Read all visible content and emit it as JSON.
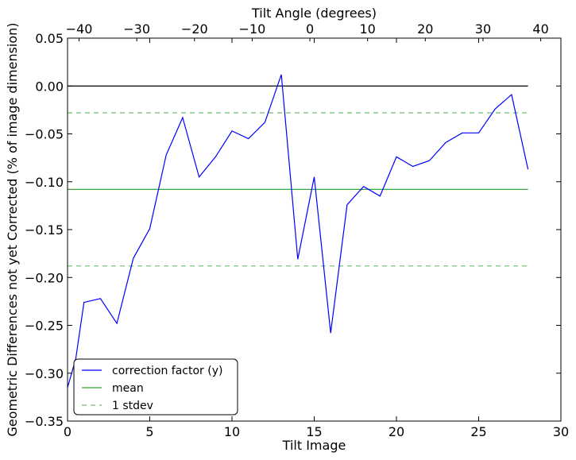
{
  "chart_data": {
    "type": "line",
    "title": "",
    "xlabel": "Tilt Image",
    "ylabel": "Geometric Differences not yet Corrected (% of image dimension)",
    "top_xlabel": "Tilt Angle (degrees)",
    "xlim": [
      0,
      30
    ],
    "ylim": [
      -0.35,
      0.05
    ],
    "top_xlim": [
      -42.0,
      43.5
    ],
    "x_ticks": [
      "0",
      "5",
      "10",
      "15",
      "20",
      "25",
      "30"
    ],
    "y_ticks": [
      "0.05",
      "0.00",
      "−0.05",
      "−0.10",
      "−0.15",
      "−0.20",
      "−0.25",
      "−0.30",
      "−0.35"
    ],
    "top_ticks": [
      "−40",
      "−30",
      "−20",
      "−10",
      "0",
      "10",
      "20",
      "30",
      "40"
    ],
    "grid": false,
    "legend_position": "lower-left",
    "colors": {
      "correction": "#0000ff",
      "mean": "#3aa53a",
      "stdev": "#6fbf6f",
      "zero": "#000000"
    },
    "series": [
      {
        "name": "correction factor (y)",
        "style": "solid",
        "x": [
          0,
          0.5,
          1,
          2,
          3,
          4,
          5,
          6,
          7,
          8,
          9,
          10,
          11,
          12,
          13,
          14,
          15,
          16,
          17,
          18,
          19,
          20,
          21,
          22,
          23,
          24,
          25,
          26,
          27,
          28
        ],
        "y": [
          -0.315,
          -0.285,
          -0.226,
          -0.222,
          -0.248,
          -0.18,
          -0.149,
          -0.072,
          -0.033,
          -0.095,
          -0.074,
          -0.047,
          -0.055,
          -0.038,
          0.012,
          -0.181,
          -0.095,
          -0.258,
          -0.124,
          -0.105,
          -0.115,
          -0.074,
          -0.084,
          -0.078,
          -0.059,
          -0.049,
          -0.049,
          -0.024,
          -0.009,
          -0.087
        ]
      },
      {
        "name": "mean",
        "style": "solid",
        "x": [
          0,
          28
        ],
        "y": [
          -0.108,
          -0.108
        ]
      },
      {
        "name": "1 stdev",
        "style": "dashed",
        "x": [
          0,
          28
        ],
        "y": [
          -0.028,
          -0.028
        ]
      },
      {
        "name": "",
        "style": "dashed",
        "x": [
          0,
          28
        ],
        "y": [
          -0.188,
          -0.188
        ]
      },
      {
        "name": "",
        "style": "solid",
        "x": [
          0,
          28
        ],
        "y": [
          0.0,
          0.0
        ]
      }
    ]
  }
}
